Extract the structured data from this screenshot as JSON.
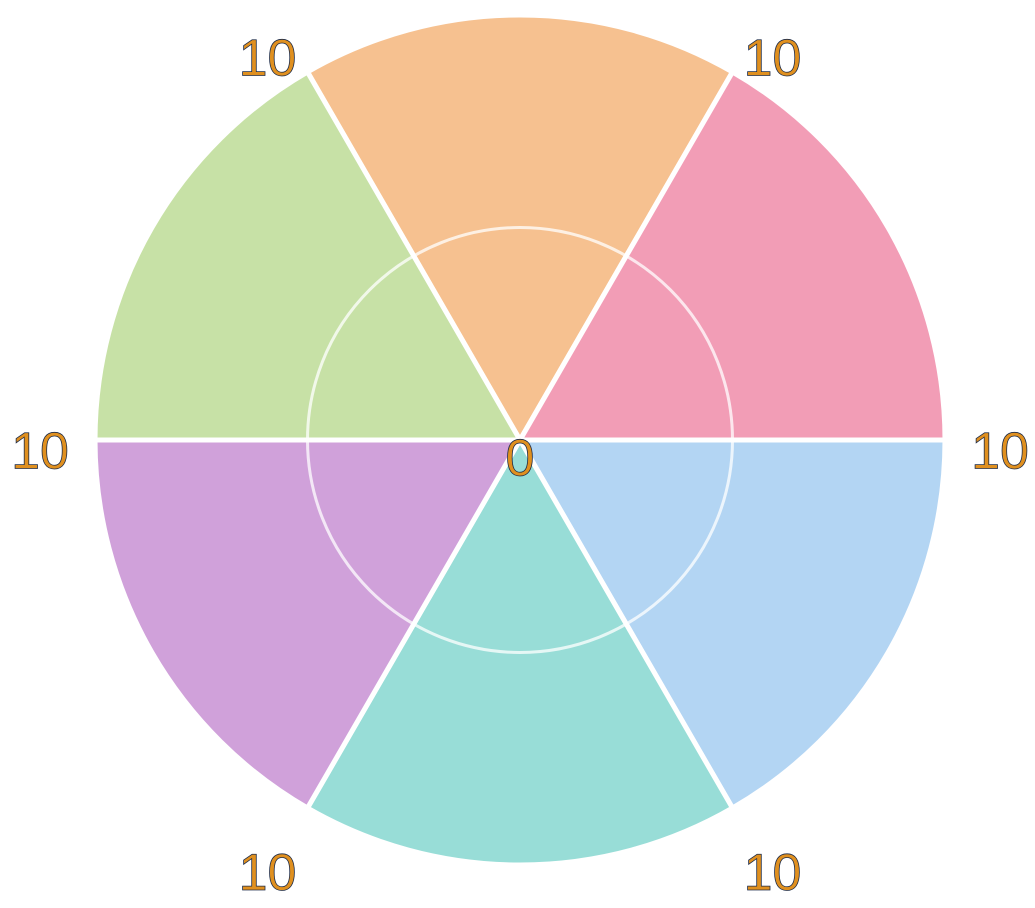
{
  "chart_data": {
    "type": "polarArea",
    "categories": [
      null,
      null,
      null,
      null,
      null,
      null
    ],
    "values": [
      10,
      10,
      10,
      10,
      10,
      10
    ],
    "colors": [
      "#f6c190",
      "#f29db6",
      "#b3d5f3",
      "#98ddd7",
      "#d0a1da",
      "#c7e1a6"
    ],
    "rlim": [
      0,
      10
    ],
    "rticks": [
      0,
      10
    ],
    "rgrid": [
      5
    ]
  }
}
